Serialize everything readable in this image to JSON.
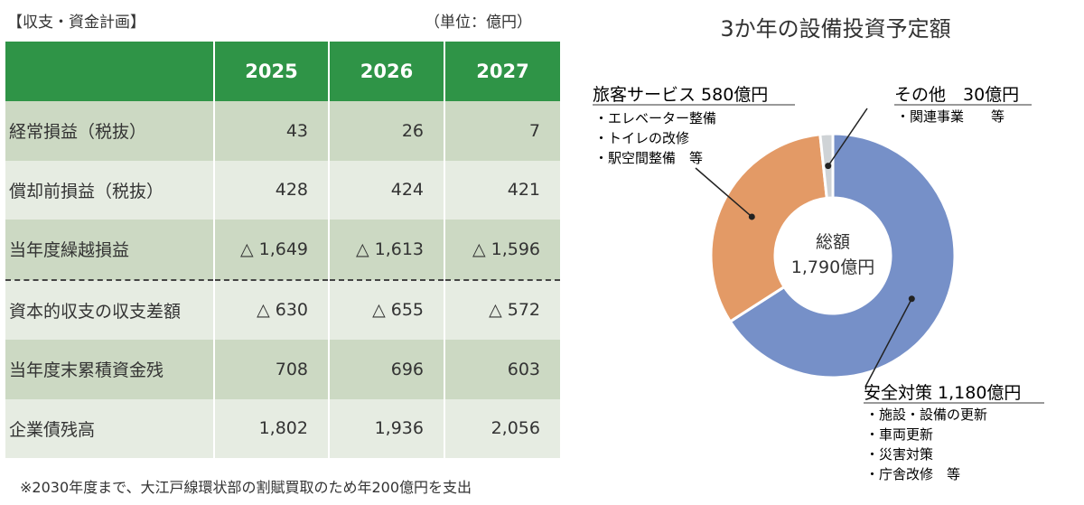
{
  "left": {
    "title": "【収支・資金計画】",
    "unit": "（単位：億円）",
    "headers": [
      "",
      "2025",
      "2026",
      "2027"
    ],
    "rows": [
      {
        "label": "経常損益（税抜）",
        "values": [
          "43",
          "26",
          "7"
        ]
      },
      {
        "label": "償却前損益（税抜）",
        "values": [
          "428",
          "424",
          "421"
        ]
      },
      {
        "label": "当年度繰越損益",
        "values": [
          "△ 1,649",
          "△ 1,613",
          "△ 1,596"
        ]
      },
      {
        "label": "資本的収支の収支差額",
        "values": [
          "△ 630",
          "△ 655",
          "△ 572"
        ]
      },
      {
        "label": "当年度末累積資金残",
        "values": [
          "708",
          "696",
          "603"
        ]
      },
      {
        "label": "企業債残高",
        "values": [
          "1,802",
          "1,936",
          "2,056"
        ]
      }
    ],
    "footnote": "※2030年度まで、大江戸線環状部の割賦買取のため年200億円を支出"
  },
  "chart_data": {
    "type": "pie",
    "title": "3か年の設備投資予定額",
    "center_label_1": "総額",
    "center_label_2": "1,790億円",
    "slices": [
      {
        "name": "安全対策",
        "value": 1180,
        "label": "安全対策 1,180億円",
        "color": "#7690c8",
        "items": [
          "・施設・設備の更新",
          "・車両更新",
          "・災害対策",
          "・庁舎改修　等"
        ]
      },
      {
        "name": "旅客サービス",
        "value": 580,
        "label": "旅客サービス 580億円",
        "color": "#e39a66",
        "items": [
          "・エレベーター整備",
          "・トイレの改修",
          "・駅空間整備　等"
        ]
      },
      {
        "name": "その他",
        "value": 30,
        "label": "その他　30億円",
        "color": "#cfd3d6",
        "items": [
          "・関連事業　　等"
        ]
      }
    ]
  }
}
